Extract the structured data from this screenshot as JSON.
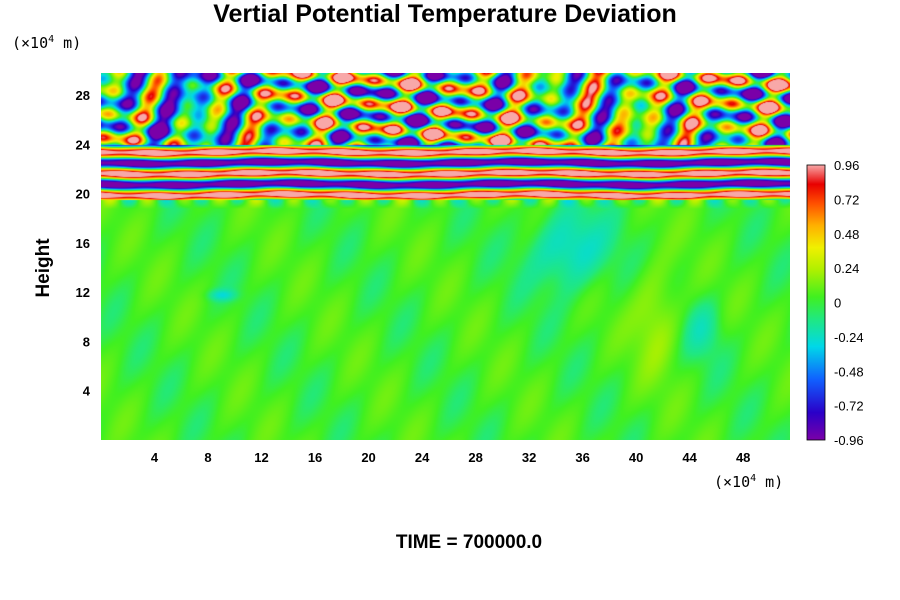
{
  "chart_data": {
    "type": "heatmap",
    "title": "Vertial Potential Temperature Deviation",
    "xlabel": "",
    "ylabel": "Height",
    "x_unit": {
      "prefix": "(×10",
      "exp": "4",
      "suffix": " m)"
    },
    "y_unit": {
      "prefix": "(×10",
      "exp": "4",
      "suffix": " m)"
    },
    "xlim": [
      0,
      51.5
    ],
    "ylim": [
      0,
      29.8
    ],
    "xticks": [
      "4",
      "8",
      "12",
      "16",
      "20",
      "24",
      "28",
      "32",
      "36",
      "40",
      "44",
      "48"
    ],
    "xtick_values": [
      4,
      8,
      12,
      16,
      20,
      24,
      28,
      32,
      36,
      40,
      44,
      48
    ],
    "yticks": [
      "4",
      "8",
      "12",
      "16",
      "20",
      "24",
      "28"
    ],
    "ytick_values": [
      4,
      8,
      12,
      16,
      20,
      24,
      28
    ],
    "colorbar": {
      "range": [
        -0.96,
        0.96
      ],
      "labels": [
        "0.96",
        "0.72",
        "0.48",
        "0.24",
        "0",
        "-0.24",
        "-0.48",
        "-0.72",
        "-0.96"
      ],
      "label_values": [
        0.96,
        0.72,
        0.48,
        0.24,
        0,
        -0.24,
        -0.48,
        -0.72,
        -0.96
      ]
    },
    "field_description": {
      "lower_region_height_max": 19.5,
      "layered_band_height": [
        19.5,
        24
      ],
      "turbulent_top_height": [
        24,
        29.8
      ]
    },
    "footer": "TIME = 700000.0"
  }
}
